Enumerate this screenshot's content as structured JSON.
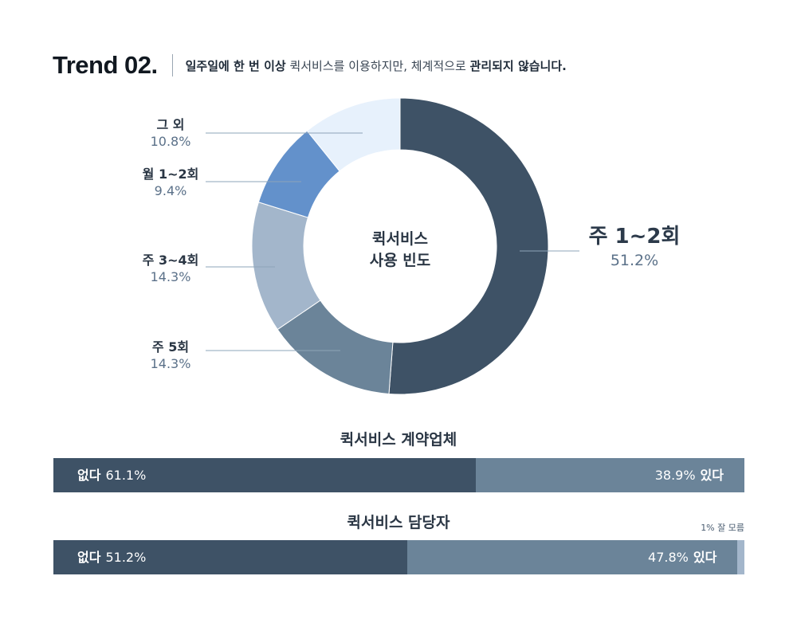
{
  "header": {
    "trend": "Trend 02.",
    "subtitle_parts": [
      {
        "text": "일주일에 한 번 이상",
        "bold": true
      },
      {
        "text": " 퀵서비스를 이용하지만, 체계적으로 ",
        "bold": false
      },
      {
        "text": "관리되지 않습니다.",
        "bold": true
      }
    ]
  },
  "chart_data": [
    {
      "type": "pie",
      "center_label": [
        "퀵서비스",
        "사용 빈도"
      ],
      "unit": "%",
      "slices": [
        {
          "label": "주 1~2회",
          "value": 51.2,
          "display": "51.2%",
          "color": "#3e5266"
        },
        {
          "label": "주 5회",
          "value": 14.3,
          "display": "14.3%",
          "color": "#6b8499"
        },
        {
          "label": "주 3~4회",
          "value": 14.3,
          "display": "14.3%",
          "color": "#a3b6cb"
        },
        {
          "label": "월 1~2회",
          "value": 9.4,
          "display": "9.4%",
          "color": "#6391cb"
        },
        {
          "label": "그 외",
          "value": 10.8,
          "display": "10.8%",
          "color": "#e7f1fc"
        }
      ]
    },
    {
      "type": "bar",
      "stacked": true,
      "orientation": "horizontal",
      "title": "퀵서비스 계약업체",
      "segments": [
        {
          "label": "없다",
          "value": 61.1,
          "display": "61.1%",
          "color": "#3e5266"
        },
        {
          "label": "있다",
          "value": 38.9,
          "display": "38.9%",
          "color": "#6b8499"
        }
      ]
    },
    {
      "type": "bar",
      "stacked": true,
      "orientation": "horizontal",
      "title": "퀵서비스 담당자",
      "note": "1% 잘 모름",
      "segments": [
        {
          "label": "없다",
          "value": 51.2,
          "display": "51.2%",
          "color": "#3e5266"
        },
        {
          "label": "있다",
          "value": 47.8,
          "display": "47.8%",
          "color": "#6b8499"
        },
        {
          "label": "잘 모름",
          "value": 1,
          "display": "",
          "color": "#a3b6cb"
        }
      ]
    }
  ]
}
